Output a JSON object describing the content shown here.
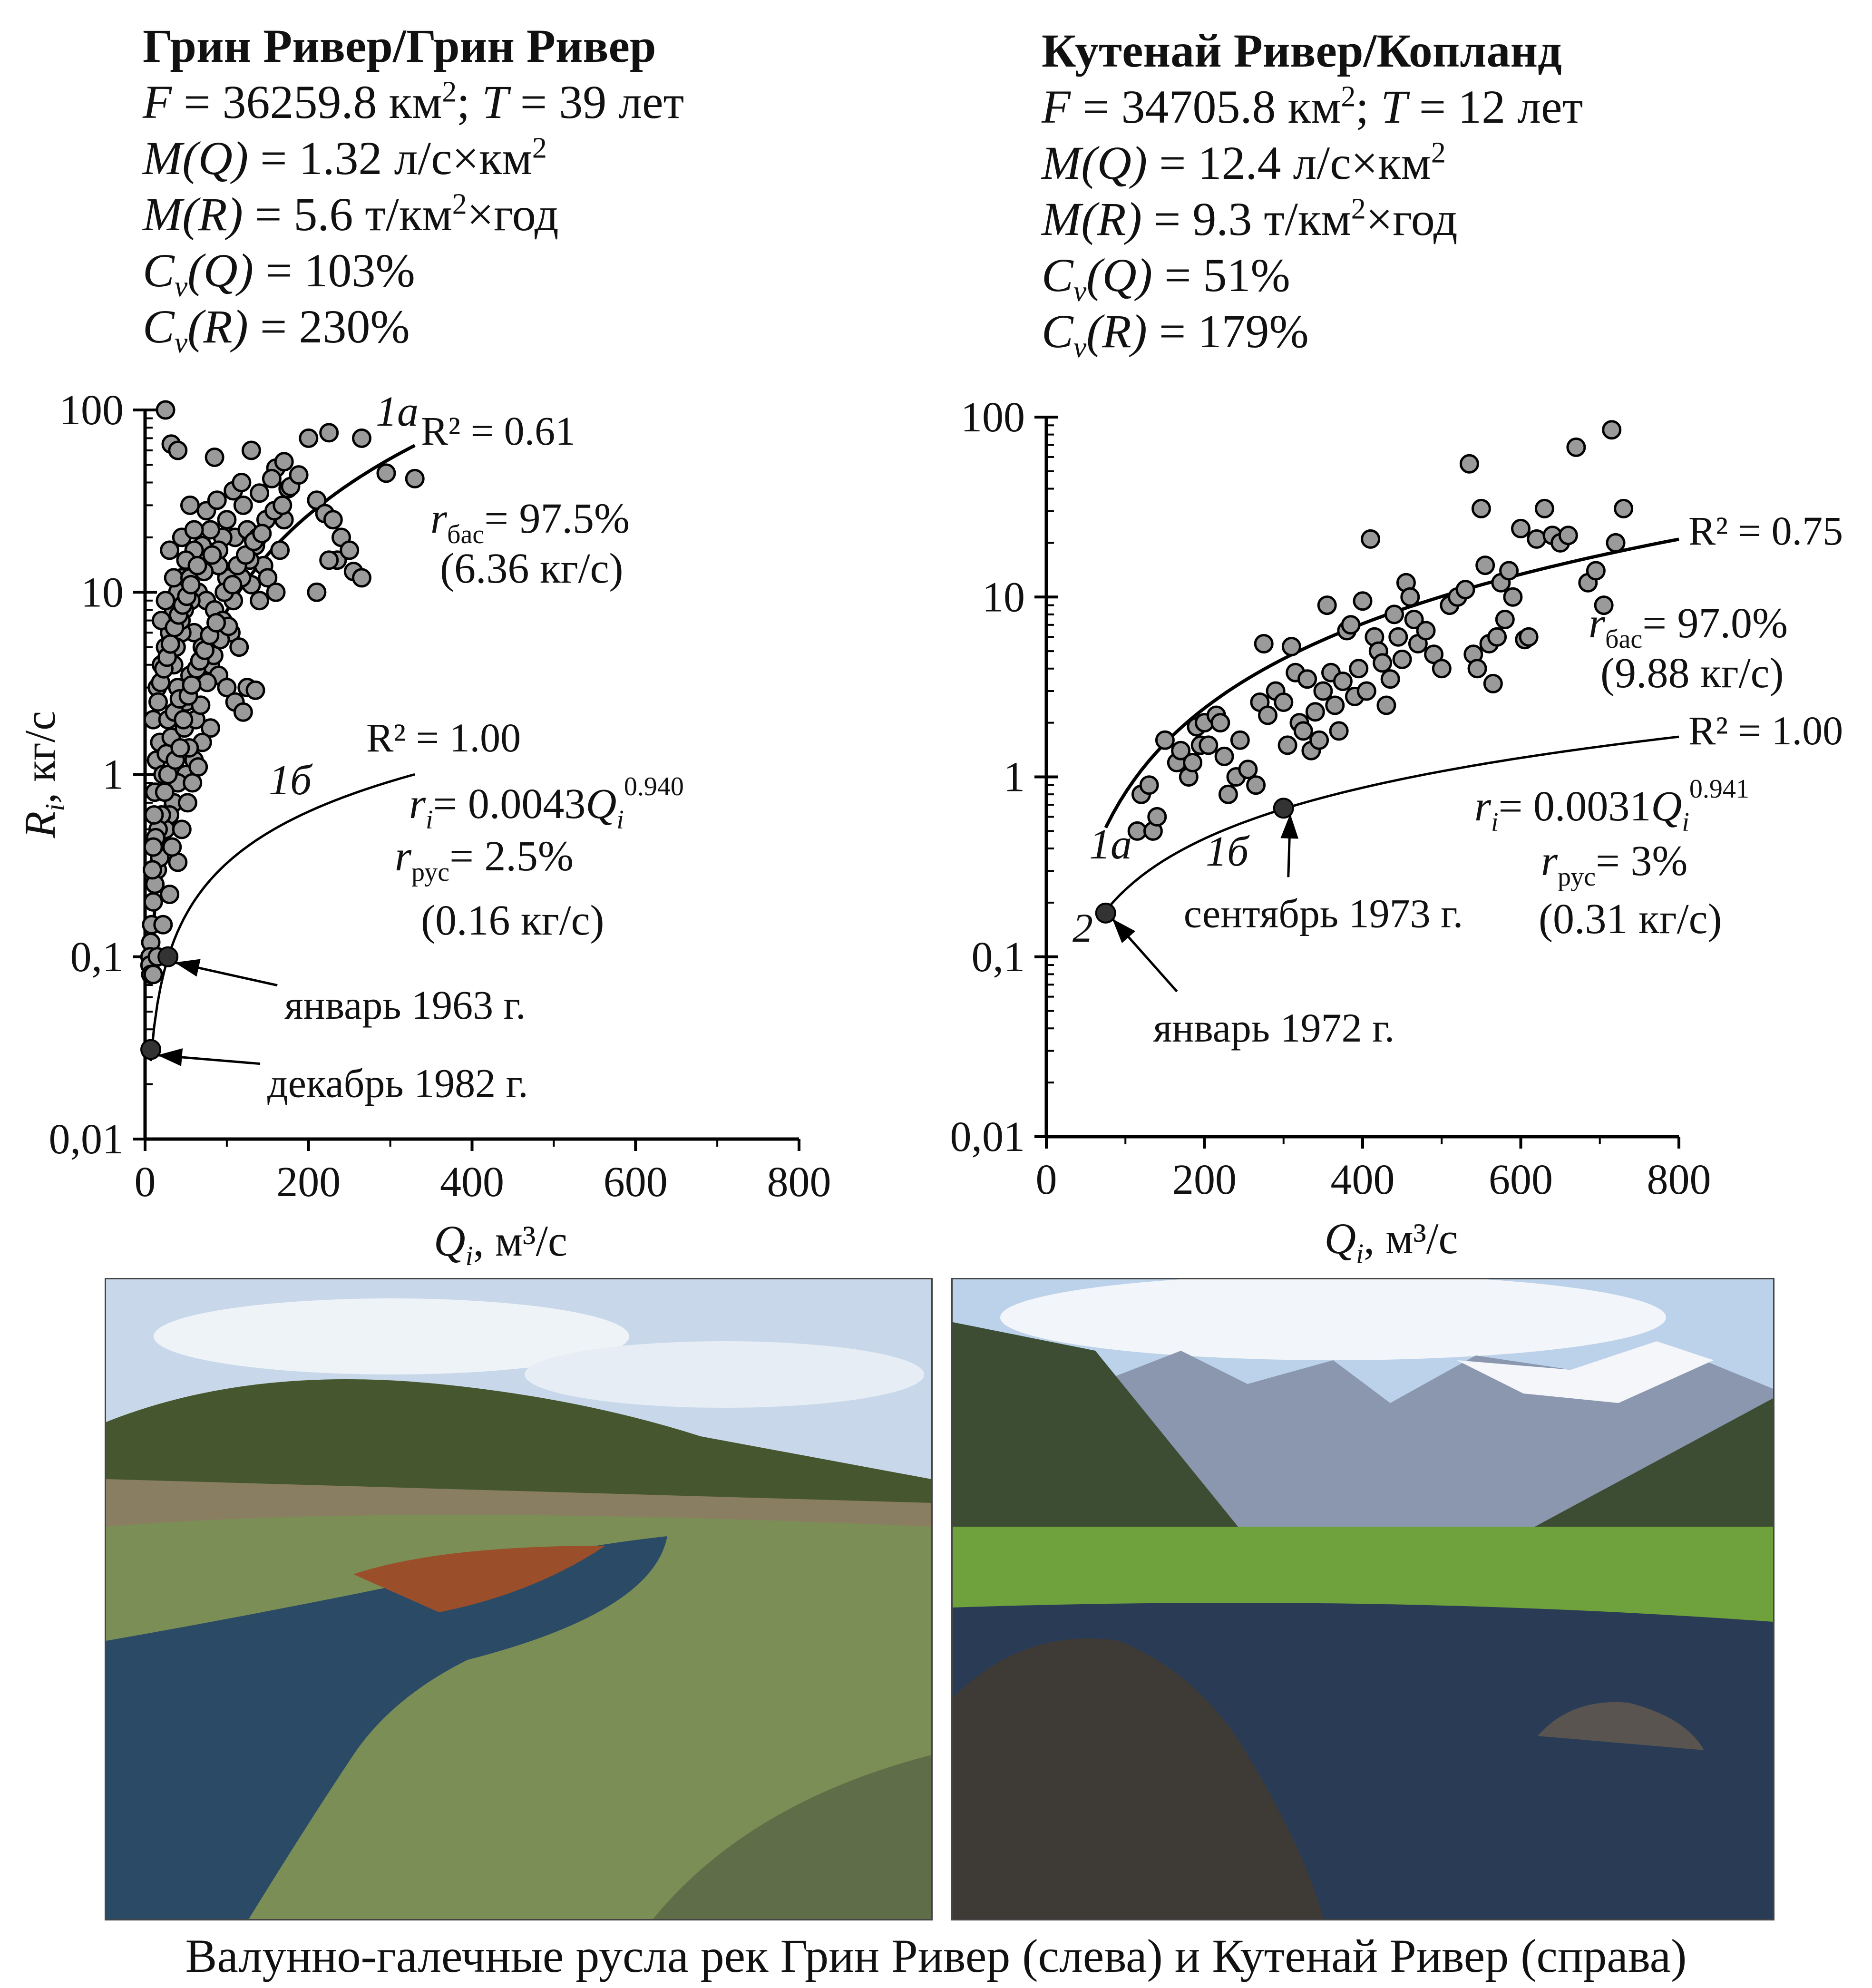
{
  "left_panel": {
    "title": "Грин Ривер/Грин Ривер",
    "F": "36259.8",
    "T": "39",
    "MQ": "1.32",
    "MR": "5.6",
    "CvQ": "103%",
    "CvR": "230%"
  },
  "right_panel": {
    "title": "Кутенай Ривер/Копланд",
    "F": "34705.8",
    "T": "12",
    "MQ": "12.4",
    "MR": "9.3",
    "CvQ": "51%",
    "CvR": "179%"
  },
  "units": {
    "area": "км",
    "years": "лет",
    "specific_discharge": "л/с×км",
    "specific_load": "т/км",
    "per_year": "×год"
  },
  "caption": "Валунно-галечные русла рек Грин Ривер (слева) и Кутенай Ривер (справа)",
  "photos": [
    {
      "name": "green-river-photo",
      "sky": "#c8d8ea",
      "hill": "#46572f",
      "water": "#2b4a66",
      "grass": "#7b8e55"
    },
    {
      "name": "kootenai-river-photo",
      "sky": "#bcd2ea",
      "hill": "#3c4d33",
      "water": "#2a3c55",
      "grass": "#6fa23c"
    }
  ],
  "chart_data": [
    {
      "type": "scatter",
      "xlim": [
        0,
        800
      ],
      "ylim": [
        0.01,
        100
      ],
      "yscale": "log",
      "xticks": [
        "0",
        "200",
        "400",
        "600",
        "800"
      ],
      "yticks": [
        "0,01",
        "0,1",
        "1",
        "10",
        "100"
      ],
      "xlabel_main": "Q",
      "xlabel_sub": "i",
      "xlabel_unit": ", м³/с",
      "ylabel_main": "R",
      "ylabel_sub": "i",
      "ylabel_unit": ", кг/с",
      "curve_1a": {
        "coef": 0.0025,
        "exp": 1.75,
        "x_from": 10,
        "x_to": 330
      },
      "curve_1b": {
        "coef": 0.0043,
        "exp": 0.94,
        "x_from": 7,
        "x_to": 330
      },
      "label_1a": "1а",
      "label_1b": "1б",
      "r2_1a": "R² = 0.61",
      "r2_1b": "R² = 1.00",
      "rbas_value": "= 97.5%",
      "rbas_flow": "(6.36 кг/с)",
      "ri_coef": "= 0.0043",
      "ri_exp": "0.940",
      "rrus_value": "= 2.5%",
      "rrus_flow": "(0.16 кг/с)",
      "annotations": [
        {
          "text": "январь 1963 г.",
          "x": 28,
          "y": 0.1
        },
        {
          "text": "декабрь 1982 г.",
          "x": 7,
          "y": 0.031
        }
      ],
      "points": [
        [
          25,
          100
        ],
        [
          32,
          65
        ],
        [
          40,
          60
        ],
        [
          55,
          30
        ],
        [
          85,
          55
        ],
        [
          130,
          60
        ],
        [
          160,
          48
        ],
        [
          170,
          52
        ],
        [
          200,
          70
        ],
        [
          225,
          75
        ],
        [
          265,
          70
        ],
        [
          295,
          45
        ],
        [
          330,
          42
        ],
        [
          140,
          35
        ],
        [
          155,
          42
        ],
        [
          175,
          37
        ],
        [
          210,
          32
        ],
        [
          220,
          27
        ],
        [
          230,
          25
        ],
        [
          240,
          20
        ],
        [
          235,
          15
        ],
        [
          250,
          17
        ],
        [
          255,
          13
        ],
        [
          265,
          12
        ],
        [
          210,
          10
        ],
        [
          225,
          15
        ],
        [
          120,
          30
        ],
        [
          110,
          20
        ],
        [
          125,
          22
        ],
        [
          135,
          18
        ],
        [
          145,
          14
        ],
        [
          150,
          12
        ],
        [
          160,
          10
        ],
        [
          165,
          17
        ],
        [
          170,
          25
        ],
        [
          140,
          9
        ],
        [
          130,
          11
        ],
        [
          100,
          25
        ],
        [
          95,
          20
        ],
        [
          90,
          17
        ],
        [
          80,
          22
        ],
        [
          70,
          18
        ],
        [
          60,
          17
        ],
        [
          50,
          15
        ],
        [
          45,
          12
        ],
        [
          40,
          10
        ],
        [
          35,
          8
        ],
        [
          30,
          6
        ],
        [
          25,
          5
        ],
        [
          20,
          4
        ],
        [
          15,
          3
        ],
        [
          10,
          2
        ],
        [
          30,
          17
        ],
        [
          45,
          20
        ],
        [
          35,
          12
        ],
        [
          55,
          12
        ],
        [
          65,
          10
        ],
        [
          75,
          9
        ],
        [
          85,
          8
        ],
        [
          95,
          7
        ],
        [
          105,
          6
        ],
        [
          115,
          5
        ],
        [
          125,
          3
        ],
        [
          135,
          2.9
        ],
        [
          60,
          6
        ],
        [
          70,
          5
        ],
        [
          80,
          4
        ],
        [
          90,
          3.5
        ],
        [
          100,
          3
        ],
        [
          110,
          2.5
        ],
        [
          120,
          2.2
        ],
        [
          80,
          1.8
        ],
        [
          70,
          1.5
        ],
        [
          60,
          1.2
        ],
        [
          50,
          1.0
        ],
        [
          40,
          0.9
        ],
        [
          35,
          0.7
        ],
        [
          30,
          0.6
        ],
        [
          25,
          0.5
        ],
        [
          20,
          0.4
        ],
        [
          15,
          0.3
        ],
        [
          12,
          0.25
        ],
        [
          10,
          0.2
        ],
        [
          8,
          0.15
        ],
        [
          7,
          0.12
        ],
        [
          6,
          0.1
        ],
        [
          6,
          0.09
        ],
        [
          7,
          0.08
        ],
        [
          10,
          0.08
        ],
        [
          15,
          0.1
        ],
        [
          22,
          0.15
        ],
        [
          30,
          0.22
        ],
        [
          40,
          0.33
        ],
        [
          45,
          0.5
        ],
        [
          52,
          0.7
        ],
        [
          58,
          0.9
        ],
        [
          65,
          1.1
        ],
        [
          20,
          7
        ],
        [
          25,
          9
        ],
        [
          35,
          4
        ],
        [
          40,
          3
        ],
        [
          50,
          2.5
        ],
        [
          55,
          3.5
        ],
        [
          45,
          6
        ],
        [
          38,
          5
        ],
        [
          28,
          2
        ],
        [
          18,
          1.5
        ],
        [
          14,
          1.2
        ],
        [
          12,
          0.8
        ],
        [
          22,
          1.0
        ],
        [
          26,
          1.3
        ],
        [
          32,
          1.6
        ],
        [
          36,
          2.2
        ],
        [
          42,
          2.6
        ],
        [
          48,
          1.8
        ],
        [
          54,
          1.4
        ],
        [
          62,
          2.0
        ],
        [
          68,
          2.4
        ],
        [
          76,
          3.2
        ],
        [
          84,
          4.5
        ],
        [
          92,
          5.5
        ],
        [
          102,
          6.5
        ],
        [
          108,
          9
        ],
        [
          118,
          12
        ],
        [
          128,
          15
        ],
        [
          138,
          20
        ],
        [
          148,
          25
        ],
        [
          158,
          28
        ],
        [
          168,
          30
        ],
        [
          178,
          38
        ],
        [
          188,
          44
        ],
        [
          100,
          12
        ],
        [
          90,
          14
        ],
        [
          82,
          16
        ],
        [
          72,
          13
        ],
        [
          64,
          14
        ],
        [
          56,
          9
        ],
        [
          48,
          8
        ],
        [
          44,
          7
        ],
        [
          60,
          22
        ],
        [
          75,
          28
        ],
        [
          88,
          32
        ],
        [
          108,
          36
        ],
        [
          118,
          40
        ],
        [
          20,
          0.6
        ],
        [
          24,
          0.8
        ],
        [
          28,
          1.0
        ],
        [
          16,
          0.5
        ],
        [
          18,
          0.35
        ],
        [
          13,
          0.45
        ],
        [
          11,
          0.6
        ],
        [
          9,
          0.3
        ],
        [
          10,
          0.4
        ],
        [
          33,
          0.4
        ],
        [
          37,
          1.2
        ],
        [
          43,
          1.4
        ],
        [
          47,
          2.0
        ],
        [
          53,
          2.7
        ],
        [
          57,
          3.1
        ],
        [
          63,
          3.8
        ],
        [
          67,
          4.2
        ],
        [
          73,
          4.8
        ],
        [
          79,
          5.8
        ],
        [
          87,
          6.8
        ],
        [
          97,
          10
        ],
        [
          107,
          11
        ],
        [
          113,
          14
        ],
        [
          123,
          16
        ],
        [
          133,
          19
        ],
        [
          143,
          21
        ],
        [
          16,
          2.5
        ],
        [
          19,
          3.2
        ],
        [
          23,
          3.8
        ],
        [
          27,
          4.4
        ],
        [
          31,
          5.2
        ],
        [
          36,
          6.4
        ],
        [
          41,
          7.5
        ],
        [
          46,
          8.5
        ],
        [
          51,
          9.5
        ],
        [
          56,
          11
        ]
      ]
    },
    {
      "type": "scatter",
      "xlim": [
        0,
        800
      ],
      "ylim": [
        0.01,
        100
      ],
      "yscale": "log",
      "xticks": [
        "0",
        "200",
        "400",
        "600",
        "800"
      ],
      "yticks": [
        "0,01",
        "0,1",
        "1",
        "10",
        "100"
      ],
      "xlabel_main": "Q",
      "xlabel_sub": "i",
      "xlabel_unit": ", м³/с",
      "curve_1a": {
        "coef": 0.00062,
        "exp": 1.56,
        "x_from": 75,
        "x_to": 800
      },
      "curve_1b": {
        "coef": 0.0031,
        "exp": 0.941,
        "x_from": 75,
        "x_to": 800
      },
      "label_1a": "1а",
      "label_1b": "1б",
      "label_2": "2",
      "r2_1a": "R² = 0.75",
      "r2_1b": "R² = 1.00",
      "rbas_value": "= 97.0%",
      "rbas_flow": "(9.88 кг/с)",
      "ri_coef": "= 0.0031",
      "ri_exp": "0.941",
      "rrus_value": "= 3%",
      "rrus_flow": "(0.31 кг/с)",
      "annotations": [
        {
          "text": "сентябрь 1973 г.",
          "x": 300,
          "y": 0.67
        },
        {
          "text": "январь 1972 г.",
          "x": 75,
          "y": 0.175
        }
      ],
      "points": [
        [
          120,
          0.8
        ],
        [
          115,
          0.5
        ],
        [
          130,
          0.9
        ],
        [
          135,
          0.5
        ],
        [
          140,
          0.6
        ],
        [
          150,
          1.6
        ],
        [
          165,
          1.2
        ],
        [
          170,
          1.4
        ],
        [
          180,
          1.0
        ],
        [
          185,
          1.2
        ],
        [
          195,
          1.5
        ],
        [
          190,
          1.9
        ],
        [
          200,
          2.0
        ],
        [
          205,
          1.5
        ],
        [
          215,
          2.2
        ],
        [
          220,
          2.0
        ],
        [
          225,
          1.3
        ],
        [
          230,
          0.8
        ],
        [
          240,
          1.0
        ],
        [
          245,
          1.6
        ],
        [
          255,
          1.1
        ],
        [
          265,
          0.9
        ],
        [
          270,
          2.6
        ],
        [
          275,
          5.5
        ],
        [
          280,
          2.2
        ],
        [
          290,
          3.0
        ],
        [
          300,
          2.6
        ],
        [
          305,
          1.5
        ],
        [
          310,
          5.3
        ],
        [
          315,
          3.8
        ],
        [
          320,
          2.0
        ],
        [
          325,
          1.8
        ],
        [
          330,
          3.5
        ],
        [
          335,
          1.4
        ],
        [
          340,
          2.3
        ],
        [
          345,
          1.6
        ],
        [
          350,
          3.0
        ],
        [
          355,
          9.0
        ],
        [
          360,
          3.8
        ],
        [
          365,
          2.5
        ],
        [
          370,
          1.8
        ],
        [
          375,
          3.4
        ],
        [
          380,
          6.5
        ],
        [
          385,
          7.0
        ],
        [
          390,
          2.8
        ],
        [
          395,
          4.0
        ],
        [
          400,
          9.5
        ],
        [
          405,
          3.0
        ],
        [
          410,
          21
        ],
        [
          415,
          6.0
        ],
        [
          420,
          5.0
        ],
        [
          425,
          4.3
        ],
        [
          430,
          2.5
        ],
        [
          435,
          3.5
        ],
        [
          440,
          8.0
        ],
        [
          445,
          6.0
        ],
        [
          450,
          4.5
        ],
        [
          455,
          12
        ],
        [
          460,
          10
        ],
        [
          465,
          7.5
        ],
        [
          470,
          5.5
        ],
        [
          480,
          6.5
        ],
        [
          490,
          4.8
        ],
        [
          500,
          4.0
        ],
        [
          510,
          9.0
        ],
        [
          520,
          10
        ],
        [
          530,
          11
        ],
        [
          535,
          55
        ],
        [
          540,
          4.8
        ],
        [
          545,
          4.0
        ],
        [
          550,
          31
        ],
        [
          555,
          15
        ],
        [
          560,
          5.5
        ],
        [
          565,
          3.3
        ],
        [
          570,
          6.0
        ],
        [
          575,
          12
        ],
        [
          580,
          7.5
        ],
        [
          585,
          14
        ],
        [
          590,
          10
        ],
        [
          600,
          24
        ],
        [
          605,
          5.8
        ],
        [
          610,
          6.0
        ],
        [
          620,
          21
        ],
        [
          630,
          31
        ],
        [
          640,
          22
        ],
        [
          650,
          20
        ],
        [
          660,
          22
        ],
        [
          670,
          68
        ],
        [
          685,
          12
        ],
        [
          695,
          14
        ],
        [
          705,
          9.0
        ],
        [
          715,
          85
        ],
        [
          720,
          20
        ],
        [
          730,
          31
        ]
      ]
    }
  ]
}
